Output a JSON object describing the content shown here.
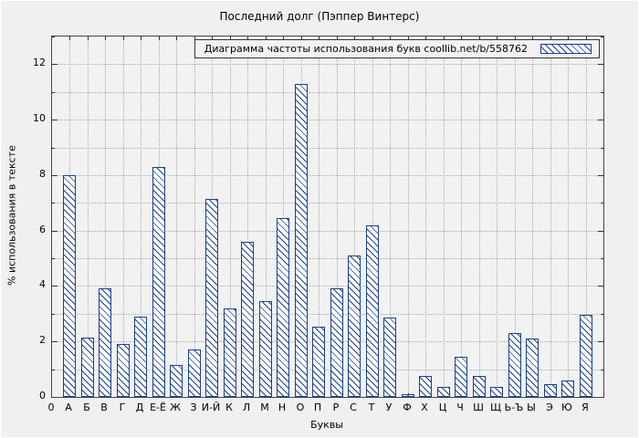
{
  "title": "Последний долг (Пэппер Винтерс)",
  "axes": {
    "xlabel": "Буквы",
    "ylabel": "% использования в тексте",
    "origin_label": "0"
  },
  "legend": {
    "label": "Диаграмма частоты использования букв  coollib.net/b/558762"
  },
  "chart_data": {
    "type": "bar",
    "title": "Последний долг (Пэппер Винтерс)",
    "legend": "Диаграмма частоты использования букв coollib.net/b/558762",
    "xlabel": "Буквы",
    "ylabel": "% использования в тексте",
    "ylim": [
      0,
      13
    ],
    "yticks": [
      0,
      2,
      4,
      6,
      8,
      10,
      12
    ],
    "grid": true,
    "legend_position": "top-right",
    "bar_color": "#1a3f8f",
    "fill_style": "diagonal-hatch",
    "categories": [
      "А",
      "Б",
      "В",
      "Г",
      "Д",
      "Е-Ё",
      "Ж",
      "З",
      "И-Й",
      "К",
      "Л",
      "М",
      "Н",
      "О",
      "П",
      "Р",
      "С",
      "Т",
      "У",
      "Ф",
      "Х",
      "Ц",
      "Ч",
      "Ш",
      "Щ",
      "Ь-Ъ",
      "Ы",
      "Э",
      "Ю",
      "Я"
    ],
    "values": [
      8.0,
      2.15,
      3.9,
      1.9,
      2.9,
      8.3,
      1.15,
      1.7,
      7.15,
      3.2,
      5.6,
      3.45,
      6.45,
      11.3,
      2.55,
      3.9,
      5.1,
      6.2,
      2.85,
      0.1,
      0.75,
      0.35,
      1.45,
      0.75,
      0.35,
      2.3,
      2.1,
      0.45,
      0.6,
      2.95
    ]
  }
}
